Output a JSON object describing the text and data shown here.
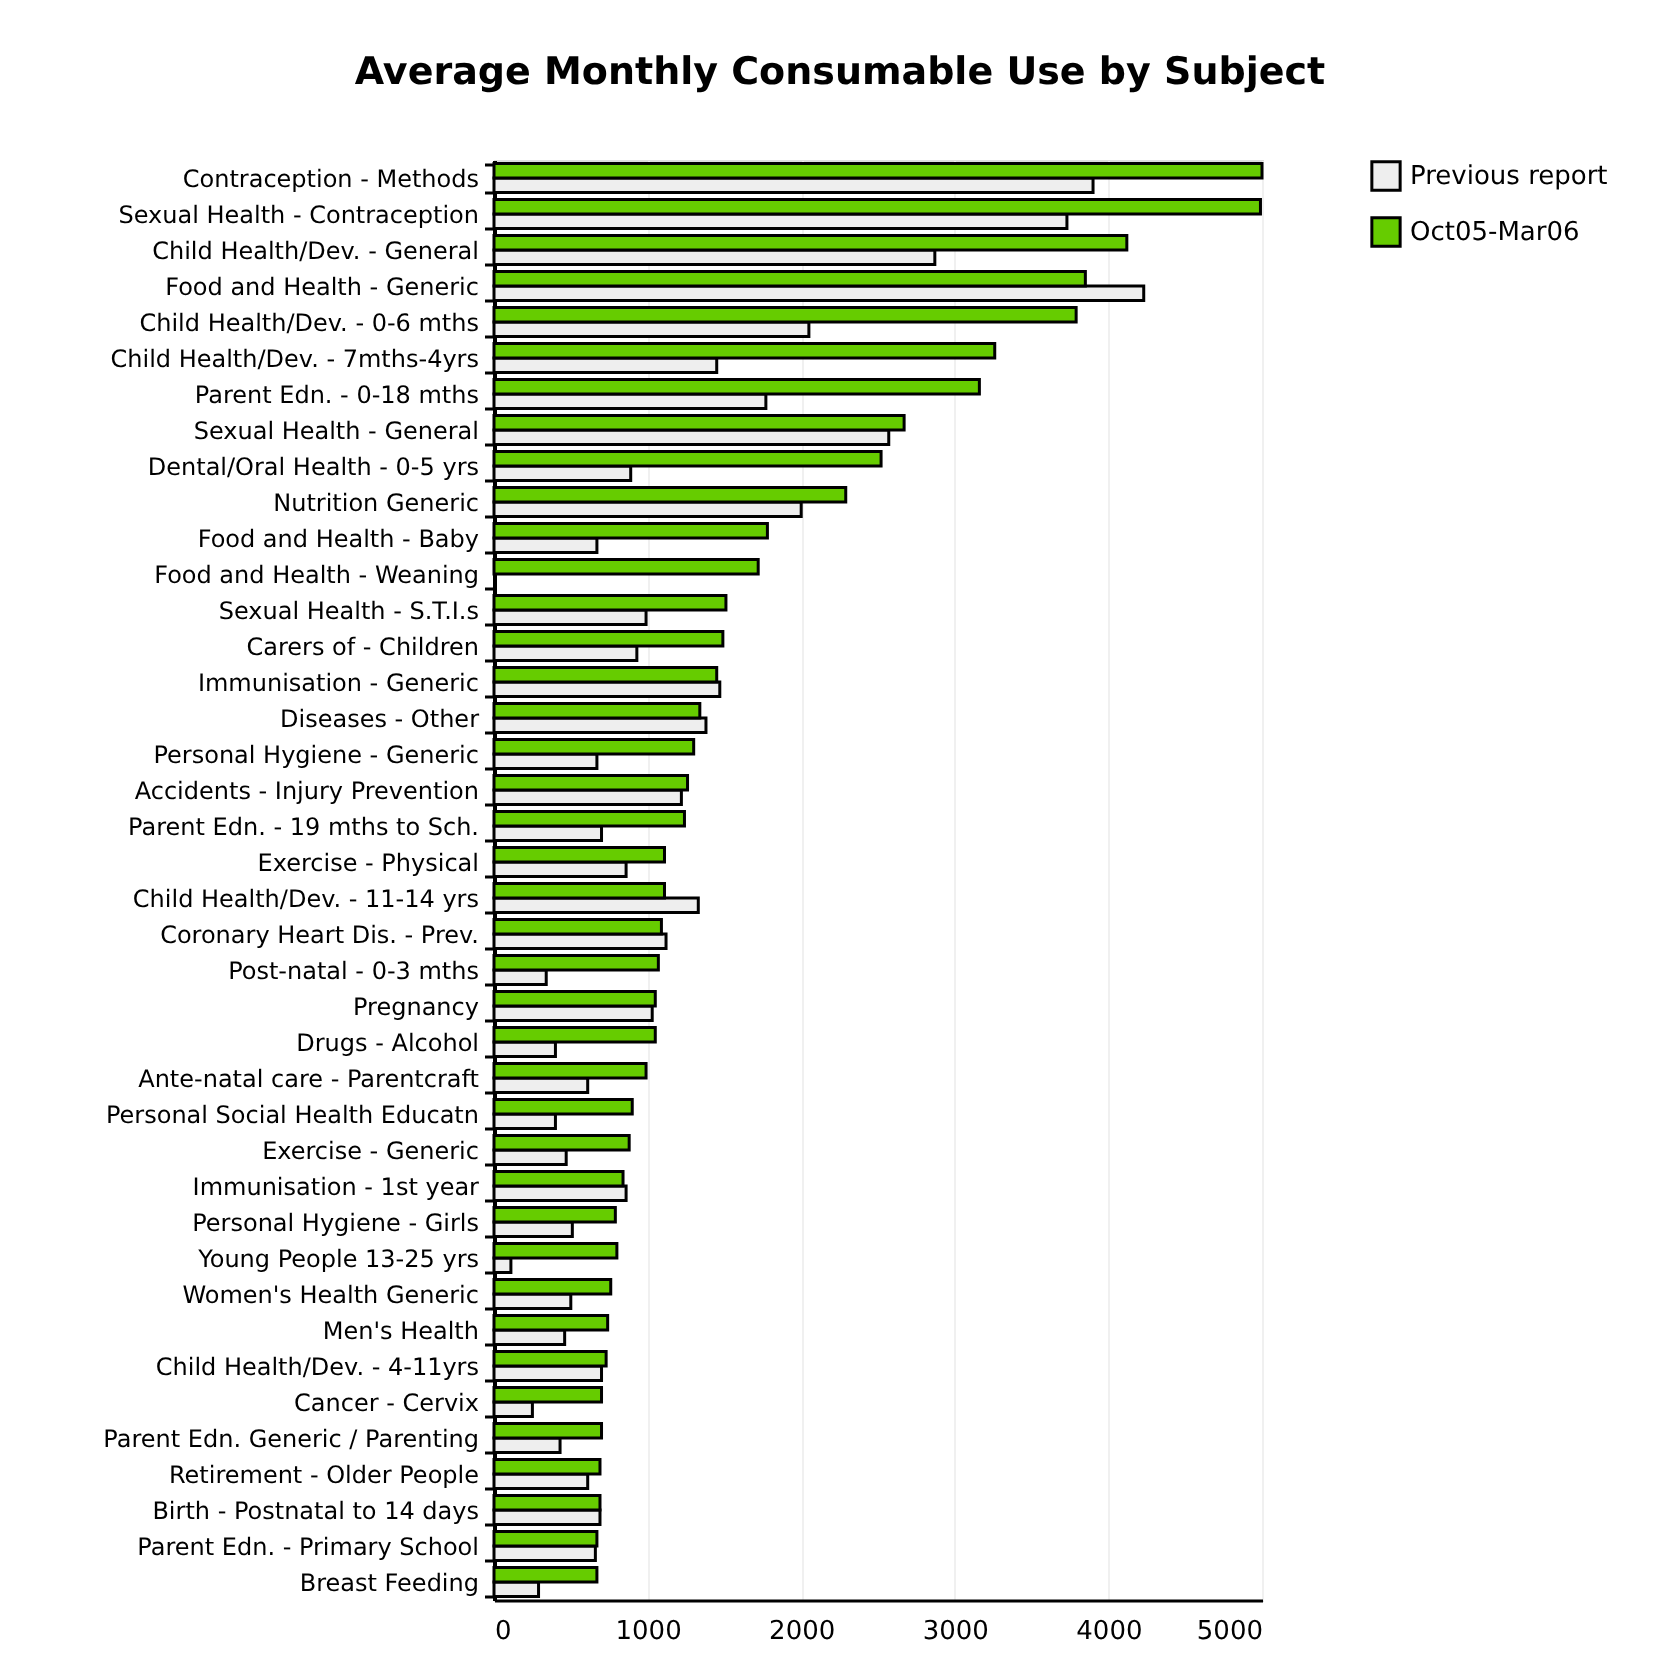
{
  "chart_data": {
    "type": "bar",
    "orientation": "horizontal",
    "title": "Average Monthly Consumable Use by Subject",
    "categories": [
      "Contraception - Methods",
      "Sexual Health - Contraception",
      "Child Health/Dev. - General",
      "Food and Health - Generic",
      "Child Health/Dev. - 0-6 mths",
      "Child Health/Dev. - 7mths-4yrs",
      "Parent Edn. - 0-18 mths",
      "Sexual Health - General",
      "Dental/Oral Health - 0-5 yrs",
      "Nutrition Generic",
      "Food and Health - Baby",
      "Food and Health - Weaning",
      "Sexual Health - S.T.I.s",
      "Carers of - Children",
      "Immunisation - Generic",
      "Diseases - Other",
      "Personal Hygiene - Generic",
      "Accidents - Injury Prevention",
      "Parent Edn. - 19 mths to Sch.",
      "Exercise - Physical",
      "Child Health/Dev. - 11-14 yrs",
      "Coronary Heart Dis. - Prev.",
      "Post-natal - 0-3 mths",
      "Pregnancy",
      "Drugs - Alcohol",
      "Ante-natal care - Parentcraft",
      "Personal Social Health Educatn",
      "Exercise - Generic",
      "Immunisation - 1st year",
      "Personal Hygiene - Girls",
      "Young People 13-25 yrs",
      "Women's Health Generic",
      "Men's Health",
      "Child Health/Dev. - 4-11yrs",
      "Cancer - Cervix",
      "Parent Edn. Generic / Parenting",
      "Retirement - Older People",
      "Birth - Postnatal to 14 days",
      "Parent Edn. - Primary School",
      "Breast Feeding"
    ],
    "series": [
      {
        "name": "Previous report",
        "color": "#eeeeee",
        "values": [
          3900,
          3730,
          2870,
          4230,
          2050,
          1450,
          1770,
          2570,
          890,
          2000,
          670,
          null,
          990,
          930,
          1470,
          1380,
          670,
          1220,
          700,
          860,
          1330,
          1120,
          340,
          1030,
          400,
          610,
          400,
          470,
          860,
          510,
          110,
          500,
          460,
          700,
          250,
          430,
          610,
          690,
          660,
          290
        ]
      },
      {
        "name": "Oct05-Mar06",
        "color": "#66cc00",
        "values": [
          5000,
          4990,
          4120,
          3850,
          3790,
          3260,
          3160,
          2670,
          2520,
          2290,
          1780,
          1720,
          1510,
          1490,
          1450,
          1340,
          1300,
          1260,
          1240,
          1110,
          1110,
          1090,
          1070,
          1050,
          1050,
          990,
          900,
          880,
          840,
          790,
          800,
          760,
          740,
          730,
          700,
          700,
          690,
          690,
          670,
          670
        ]
      }
    ],
    "xlim": [
      0,
      5000
    ],
    "xticks": [
      0,
      1000,
      2000,
      3000,
      4000,
      5000
    ],
    "grid": "x",
    "legend": "top right"
  }
}
